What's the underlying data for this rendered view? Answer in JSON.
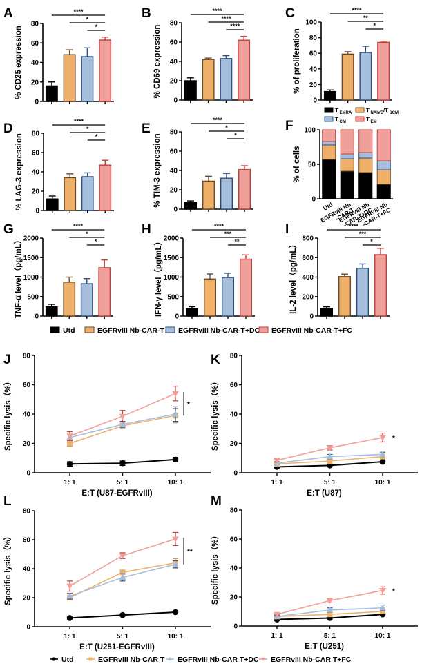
{
  "groups": {
    "names": [
      "Utd",
      "EGFRvIII Nb-CAR-T",
      "EGFRvIII Nb-CAR-T+DC",
      "EGFRvIII Nb-CAR-T+FC"
    ],
    "fill": [
      "#000000",
      "#EFB06A",
      "#A6BFDD",
      "#F0A09A"
    ],
    "stroke": [
      "#000000",
      "#6B4A2A",
      "#2E4E7E",
      "#C0403A"
    ]
  },
  "bar_legend": {
    "items": [
      "Utd",
      "EGFRvIII Nb-CAR-T",
      "EGFRvIII Nb-CAR-T+DC",
      "EGFRvIII Nb-CAR-T+FC"
    ]
  },
  "line_legend": {
    "items": [
      "Utd",
      "EGFRvIII Nb-CAR T",
      "EGFRvIII Nb-CAR T+DC",
      "EGFRvIII Nb-CAR T+FC"
    ],
    "colors": [
      "#000000",
      "#EFB06A",
      "#A6BFDD",
      "#F0A09A"
    ]
  },
  "chart_data": [
    {
      "panel": "A",
      "type": "bar",
      "ylabel": "% CD25 expression",
      "ylim": [
        0,
        80
      ],
      "yticks": [
        0,
        20,
        40,
        60,
        80
      ],
      "categories": [
        "Utd",
        "EGFRvIII Nb-CAR-T",
        "EGFRvIII Nb-CAR-T+DC",
        "EGFRvIII Nb-CAR-T+FC"
      ],
      "values": [
        16,
        48,
        46,
        63
      ],
      "errors": [
        4,
        5,
        9,
        3
      ],
      "significance": [
        {
          "from": 0,
          "to": 3,
          "label": "****"
        },
        {
          "from": 1,
          "to": 3,
          "label": "*"
        },
        {
          "from": 2,
          "to": 3,
          "label": "*"
        }
      ]
    },
    {
      "panel": "B",
      "type": "bar",
      "ylabel": "% CD69 expression",
      "ylim": [
        0,
        80
      ],
      "yticks": [
        0,
        20,
        40,
        60,
        80
      ],
      "categories": [
        "Utd",
        "EGFRvIII Nb-CAR-T",
        "EGFRvIII Nb-CAR-T+DC",
        "EGFRvIII Nb-CAR-T+FC"
      ],
      "values": [
        20,
        42,
        43,
        62
      ],
      "errors": [
        3,
        1.5,
        3,
        4
      ],
      "significance": [
        {
          "from": 0,
          "to": 3,
          "label": "****"
        },
        {
          "from": 1,
          "to": 3,
          "label": "****"
        },
        {
          "from": 2,
          "to": 3,
          "label": "****"
        }
      ]
    },
    {
      "panel": "C",
      "type": "bar",
      "ylabel": "% of proliferation",
      "ylim": [
        0,
        100
      ],
      "yticks": [
        0,
        20,
        40,
        60,
        80,
        100
      ],
      "categories": [
        "Utd",
        "EGFRvIII Nb-CAR-T",
        "EGFRvIII Nb-CAR-T+DC",
        "EGFRvIII Nb-CAR-T+FC"
      ],
      "values": [
        11,
        59,
        61,
        74
      ],
      "errors": [
        2,
        3,
        8,
        1.5
      ],
      "significance": [
        {
          "from": 0,
          "to": 3,
          "label": "****"
        },
        {
          "from": 1,
          "to": 3,
          "label": "**"
        },
        {
          "from": 2,
          "to": 3,
          "label": "*"
        }
      ]
    },
    {
      "panel": "D",
      "type": "bar",
      "ylabel": "% LAG-3 expression",
      "ylim": [
        0,
        80
      ],
      "yticks": [
        0,
        20,
        40,
        60,
        80
      ],
      "categories": [
        "Utd",
        "EGFRvIII Nb-CAR-T",
        "EGFRvIII Nb-CAR-T+DC",
        "EGFRvIII Nb-CAR-T+FC"
      ],
      "values": [
        12,
        34,
        35,
        47
      ],
      "errors": [
        3,
        4,
        4,
        5
      ],
      "significance": [
        {
          "from": 0,
          "to": 3,
          "label": "****"
        },
        {
          "from": 1,
          "to": 3,
          "label": "*"
        },
        {
          "from": 2,
          "to": 3,
          "label": "*"
        }
      ]
    },
    {
      "panel": "E",
      "type": "bar",
      "ylabel": "% TIM-3 expression",
      "ylim": [
        0,
        80
      ],
      "yticks": [
        0,
        20,
        40,
        60,
        80
      ],
      "categories": [
        "Utd",
        "EGFRvIII Nb-CAR-T",
        "EGFRvIII Nb-CAR-T+DC",
        "EGFRvIII Nb-CAR-T+FC"
      ],
      "values": [
        7,
        29,
        32,
        41
      ],
      "errors": [
        1.5,
        5,
        5,
        4
      ],
      "significance": [
        {
          "from": 0,
          "to": 3,
          "label": "****"
        },
        {
          "from": 1,
          "to": 3,
          "label": "*"
        },
        {
          "from": 2,
          "to": 3,
          "label": "*"
        }
      ]
    },
    {
      "panel": "F",
      "type": "stacked-bar",
      "ylabel": "% of cells",
      "ylim": [
        0,
        100
      ],
      "yticks": [
        0,
        50,
        100
      ],
      "categories": [
        "Utd",
        "EGFRvIII Nb -CAR-T",
        "EGFRvIII Nb -CAR-T+DC",
        "EGFRvIII Nb -CAR-T+FC"
      ],
      "series": [
        {
          "name": "T EMRA",
          "color": "#000000",
          "values": [
            57,
            40,
            38,
            21
          ]
        },
        {
          "name": "T NAIVE/T SCM",
          "color": "#EFB06A",
          "values": [
            21,
            18,
            21,
            21
          ]
        },
        {
          "name": "T CM",
          "color": "#A6BFDD",
          "values": [
            5,
            7,
            8,
            13
          ]
        },
        {
          "name": "T EM",
          "color": "#F0A09A",
          "values": [
            17,
            35,
            33,
            45
          ]
        }
      ],
      "legend": [
        {
          "main": "T",
          "sub": "EMRA"
        },
        {
          "main": "T",
          "sub": "NAIVE",
          "main2": "/T",
          "sub2": "SCM"
        },
        {
          "main": "T",
          "sub": "CM"
        },
        {
          "main": "T",
          "sub": "EM"
        }
      ]
    },
    {
      "panel": "G",
      "type": "bar",
      "ylabel": "TNF-α level（pg/mL）",
      "ylim": [
        0,
        2000
      ],
      "yticks": [
        0,
        500,
        1000,
        1500,
        2000
      ],
      "categories": [
        "Utd",
        "EGFRvIII Nb-CAR-T",
        "EGFRvIII Nb-CAR-T+DC",
        "EGFRvIII Nb-CAR-T+FC"
      ],
      "values": [
        240,
        870,
        830,
        1240
      ],
      "errors": [
        60,
        130,
        130,
        200
      ],
      "significance": [
        {
          "from": 0,
          "to": 3,
          "label": "****"
        },
        {
          "from": 1,
          "to": 3,
          "label": "*"
        },
        {
          "from": 2,
          "to": 3,
          "label": "*"
        }
      ]
    },
    {
      "panel": "H",
      "type": "bar",
      "ylabel": "IFN-γ level（pg/mL）",
      "ylim": [
        0,
        2000
      ],
      "yticks": [
        0,
        500,
        1000,
        1500,
        2000
      ],
      "categories": [
        "Utd",
        "EGFRvIII Nb-CAR-T",
        "EGFRvIII Nb-CAR-T+DC",
        "EGFRvIII Nb-CAR-T+FC"
      ],
      "values": [
        190,
        950,
        990,
        1460
      ],
      "errors": [
        50,
        130,
        110,
        110
      ],
      "significance": [
        {
          "from": 0,
          "to": 3,
          "label": "****"
        },
        {
          "from": 1,
          "to": 3,
          "label": "***"
        },
        {
          "from": 2,
          "to": 3,
          "label": "**"
        }
      ]
    },
    {
      "panel": "I",
      "type": "bar",
      "ylabel": "IL-2 level（pg/mL）",
      "ylim": [
        0,
        800
      ],
      "yticks": [
        0,
        200,
        400,
        600,
        800
      ],
      "categories": [
        "Utd",
        "EGFRvIII Nb-CAR-T",
        "EGFRvIII Nb-CAR-T+DC",
        "EGFRvIII Nb-CAR-T+FC"
      ],
      "values": [
        75,
        405,
        490,
        630
      ],
      "errors": [
        20,
        25,
        45,
        65
      ],
      "significance": [
        {
          "from": 0,
          "to": 3,
          "label": "****"
        },
        {
          "from": 1,
          "to": 3,
          "label": "***"
        },
        {
          "from": 2,
          "to": 3,
          "label": "*"
        }
      ]
    },
    {
      "panel": "J",
      "type": "line",
      "xlabel": "E:T (U87-EGFRvIII)",
      "ylabel": "Specific lysis（%）",
      "ylim": [
        0,
        80
      ],
      "yticks": [
        0,
        20,
        40,
        60,
        80
      ],
      "x": [
        "1: 1",
        "5: 1",
        "10: 1"
      ],
      "series": [
        {
          "name": "Utd",
          "values": [
            6,
            6.5,
            9
          ],
          "errors": [
            1.5,
            1.5,
            1.5
          ]
        },
        {
          "name": "EGFRvIII Nb-CAR T",
          "values": [
            20,
            32,
            39
          ],
          "errors": [
            2,
            1.5,
            5
          ]
        },
        {
          "name": "EGFRvIII Nb-CAR T+DC",
          "values": [
            24,
            33,
            40
          ],
          "errors": [
            2,
            2,
            5
          ]
        },
        {
          "name": "EGFRvIII Nb-CAR T+FC",
          "values": [
            25,
            38.5,
            54
          ],
          "errors": [
            3,
            4,
            5
          ]
        }
      ],
      "annotation": "*"
    },
    {
      "panel": "K",
      "type": "line",
      "xlabel": "E:T (U87)",
      "ylabel": "Specific lysis（%）",
      "ylim": [
        0,
        80
      ],
      "yticks": [
        0,
        20,
        40,
        60,
        80
      ],
      "x": [
        "1: 1",
        "5: 1",
        "10: 1"
      ],
      "series": [
        {
          "name": "Utd",
          "values": [
            4,
            5,
            7.5
          ],
          "errors": [
            0.8,
            0.8,
            1
          ]
        },
        {
          "name": "EGFRvIII Nb-CAR T",
          "values": [
            6,
            8,
            11
          ],
          "errors": [
            1,
            1.5,
            1.5
          ]
        },
        {
          "name": "EGFRvIII Nb-CAR T+DC",
          "values": [
            6.5,
            11,
            12.5
          ],
          "errors": [
            1,
            1.5,
            1.5
          ]
        },
        {
          "name": "EGFRvIII Nb-CAR T+FC",
          "values": [
            8.5,
            17,
            24
          ],
          "errors": [
            1,
            1.5,
            3
          ]
        }
      ],
      "annotation": "*"
    },
    {
      "panel": "L",
      "type": "line",
      "xlabel": "E:T (U251-EGFRvIII)",
      "ylabel": "Specific lysis（%）",
      "ylim": [
        0,
        80
      ],
      "yticks": [
        0,
        20,
        40,
        60,
        80
      ],
      "x": [
        "1: 1",
        "5: 1",
        "10: 1"
      ],
      "series": [
        {
          "name": "Utd",
          "values": [
            6,
            8,
            10
          ],
          "errors": [
            0.8,
            0.8,
            1.2
          ]
        },
        {
          "name": "EGFRvIII Nb-CAR T",
          "values": [
            20,
            37.5,
            44
          ],
          "errors": [
            1,
            1.5,
            3
          ]
        },
        {
          "name": "EGFRvIII Nb-CAR T+DC",
          "values": [
            21,
            34,
            43
          ],
          "errors": [
            2,
            2.5,
            2.5
          ]
        },
        {
          "name": "EGFRvIII Nb-CAR T+FC",
          "values": [
            28,
            49,
            60.5
          ],
          "errors": [
            3.5,
            2,
            4.5
          ]
        }
      ],
      "annotation": "**"
    },
    {
      "panel": "M",
      "type": "line",
      "xlabel": "E:T (U251)",
      "ylabel": "Specific lysis（%）",
      "ylim": [
        0,
        80
      ],
      "yticks": [
        0,
        20,
        40,
        60,
        80
      ],
      "x": [
        "1: 1",
        "5: 1",
        "10: 1"
      ],
      "series": [
        {
          "name": "Utd",
          "values": [
            4.5,
            5.5,
            8
          ],
          "errors": [
            0.8,
            0.8,
            1
          ]
        },
        {
          "name": "EGFRvIII Nb-CAR T",
          "values": [
            6.5,
            8,
            10
          ],
          "errors": [
            1,
            1.5,
            1.5
          ]
        },
        {
          "name": "EGFRvIII Nb-CAR T+DC",
          "values": [
            6.5,
            11,
            12.5
          ],
          "errors": [
            1,
            1.5,
            2
          ]
        },
        {
          "name": "EGFRvIII Nb-CAR T+FC",
          "values": [
            8,
            17.5,
            24.5
          ],
          "errors": [
            1,
            1.5,
            2.5
          ]
        }
      ],
      "annotation": "*"
    }
  ]
}
